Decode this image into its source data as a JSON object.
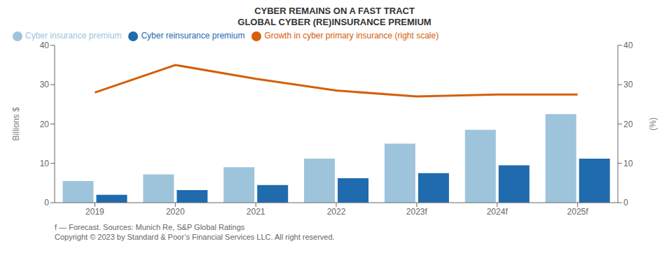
{
  "chart_data": {
    "type": "bar",
    "title": "CYBER REMAINS ON A FAST TRACT",
    "subtitle": "GLOBAL CYBER (RE)INSURANCE PREMIUM",
    "categories": [
      "2019",
      "2020",
      "2021",
      "2022",
      "2023f",
      "2024f",
      "2025f"
    ],
    "series": [
      {
        "name": "Cyber insurance premium",
        "color": "#9EC4DC",
        "values": [
          5.5,
          7.2,
          9.0,
          11.2,
          15.0,
          18.5,
          22.5
        ]
      },
      {
        "name": "Cyber reinsurance premium",
        "color": "#1F6BAD",
        "values": [
          2.0,
          3.2,
          4.5,
          6.2,
          7.5,
          9.5,
          11.2
        ]
      },
      {
        "name": "Growth in cyber primary insurance (right scale)",
        "color": "#D4600A",
        "values": [
          28.0,
          35.0,
          31.5,
          28.5,
          27.0,
          27.5,
          27.5
        ],
        "type": "line",
        "axis": "y2"
      }
    ],
    "ylim": [
      0,
      40
    ],
    "yticks": [
      0,
      10,
      20,
      30,
      40
    ],
    "y2lim": [
      0,
      40
    ],
    "y2ticks": [
      0,
      10,
      20,
      30,
      40
    ],
    "ylabel": "Billions $",
    "y2label": "(%)",
    "legend": "upper left",
    "grid": false,
    "annotations": [
      "f — Forecast. Sources: Munich Re, S&P Global Ratings",
      "Copyright © 2023 by Standard & Poor’s Financial Services LLC. All right reserved."
    ]
  }
}
